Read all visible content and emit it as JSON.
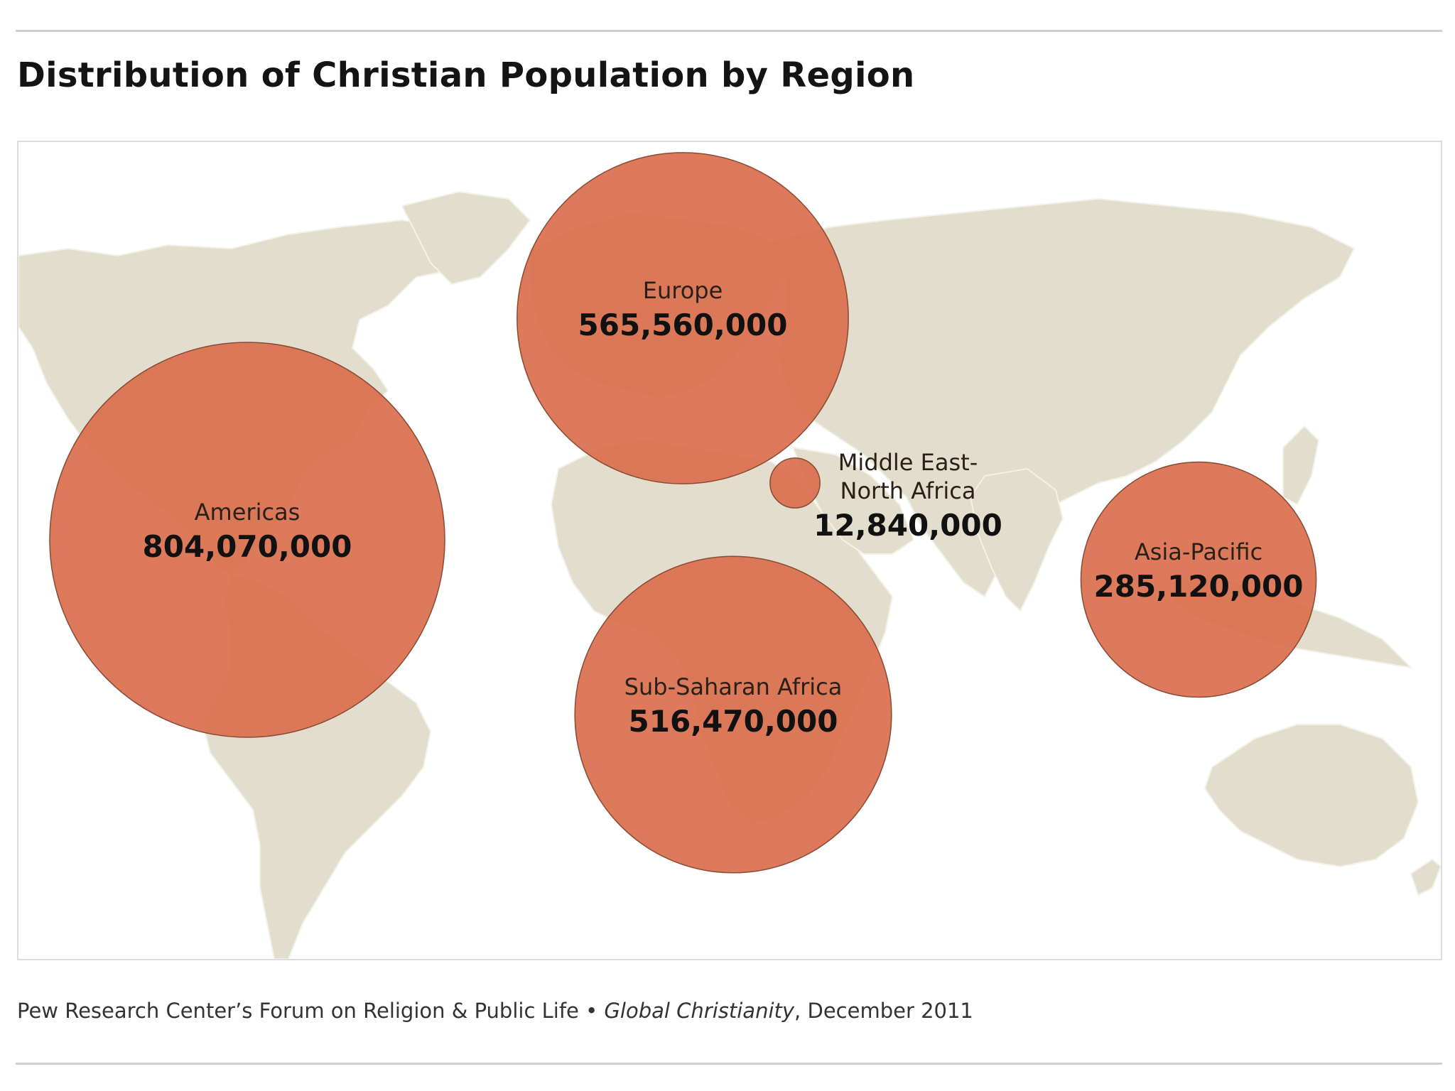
{
  "title": "Distribution of Christian Population by Region",
  "source": {
    "text_before": "Pew Research Center’s Forum on Religion & Public Life • ",
    "italic": "Global Christianity",
    "text_after": ", December 2011"
  },
  "colors": {
    "bubble_fill": "#d9704f",
    "bubble_stroke": "#8a4a34",
    "land": "#e2ddcc",
    "land_border": "#f4f1e8"
  },
  "regions": [
    {
      "name": "Americas",
      "value_label": "804,070,000",
      "value": 804070000
    },
    {
      "name": "Europe",
      "value_label": "565,560,000",
      "value": 565560000
    },
    {
      "name_lines": [
        "Middle East-",
        "North Africa"
      ],
      "value_label": "12,840,000",
      "value": 12840000
    },
    {
      "name": "Sub-Saharan Africa",
      "value_label": "516,470,000",
      "value": 516470000
    },
    {
      "name": "Asia-Pacific",
      "value_label": "285,120,000",
      "value": 285120000
    }
  ]
}
